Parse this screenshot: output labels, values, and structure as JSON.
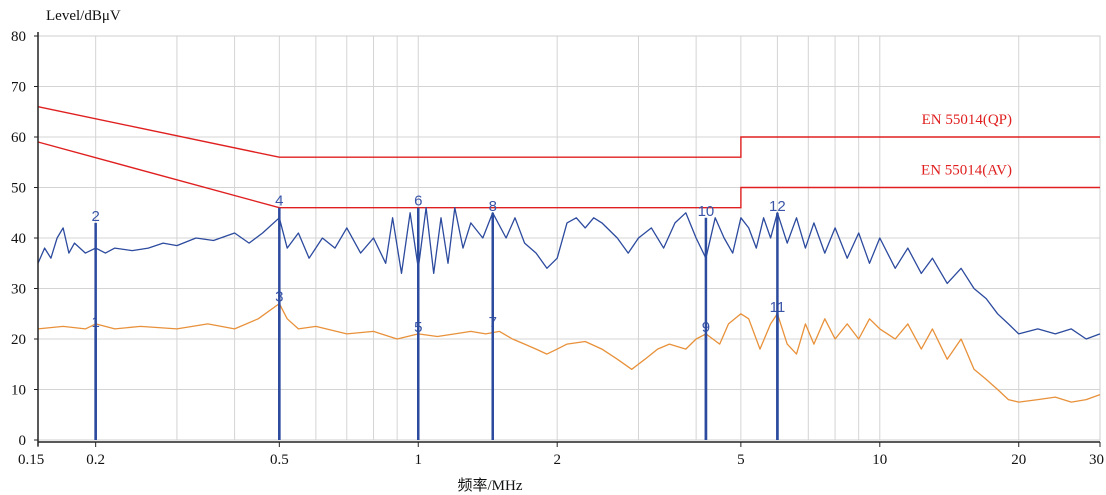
{
  "chart_data": {
    "type": "line",
    "title": "",
    "ylabel": "Level/dBμV",
    "xlabel": "频率/MHz",
    "xscale": "log",
    "xlim": [
      0.15,
      30
    ],
    "ylim": [
      0,
      80
    ],
    "grid": true,
    "x_ticks": [
      {
        "value": 0.15,
        "label": "0.15"
      },
      {
        "value": 0.2,
        "label": "0.2"
      },
      {
        "value": 0.5,
        "label": "0.5"
      },
      {
        "value": 1,
        "label": "1"
      },
      {
        "value": 2,
        "label": "2"
      },
      {
        "value": 5,
        "label": "5"
      },
      {
        "value": 10,
        "label": "10"
      },
      {
        "value": 20,
        "label": "20"
      },
      {
        "value": 30,
        "label": "30"
      }
    ],
    "y_ticks": [
      {
        "value": 0,
        "label": "0"
      },
      {
        "value": 10,
        "label": "10"
      },
      {
        "value": 20,
        "label": "20"
      },
      {
        "value": 30,
        "label": "30"
      },
      {
        "value": 40,
        "label": "40"
      },
      {
        "value": 50,
        "label": "50"
      },
      {
        "value": 60,
        "label": "60"
      },
      {
        "value": 70,
        "label": "70"
      },
      {
        "value": 80,
        "label": "80"
      }
    ],
    "colors": {
      "peak": "#2c4a9e",
      "average": "#e8913a",
      "limit": "#e02020",
      "marker": "#2c4a9e",
      "grid": "#d4d4d4"
    },
    "limit_lines": [
      {
        "name": "EN 55014(QP)",
        "points": [
          [
            0.15,
            66
          ],
          [
            0.5,
            56
          ],
          [
            5,
            56
          ],
          [
            5,
            60
          ],
          [
            30,
            60
          ]
        ]
      },
      {
        "name": "EN 55014(AV)",
        "points": [
          [
            0.15,
            59
          ],
          [
            0.5,
            46
          ],
          [
            5,
            46
          ],
          [
            5,
            50
          ],
          [
            30,
            50
          ]
        ]
      }
    ],
    "series": [
      {
        "points": [
          [
            0.15,
            35
          ],
          [
            0.155,
            38
          ],
          [
            0.16,
            36
          ],
          [
            0.165,
            40
          ],
          [
            0.17,
            42
          ],
          [
            0.175,
            37
          ],
          [
            0.18,
            39
          ],
          [
            0.19,
            37
          ],
          [
            0.2,
            38
          ],
          [
            0.21,
            37
          ],
          [
            0.22,
            38
          ],
          [
            0.24,
            37.5
          ],
          [
            0.26,
            38
          ],
          [
            0.28,
            39
          ],
          [
            0.3,
            38.5
          ],
          [
            0.33,
            40
          ],
          [
            0.36,
            39.5
          ],
          [
            0.4,
            41
          ],
          [
            0.43,
            39
          ],
          [
            0.46,
            41
          ],
          [
            0.5,
            44
          ],
          [
            0.52,
            38
          ],
          [
            0.55,
            41
          ],
          [
            0.58,
            36
          ],
          [
            0.62,
            40
          ],
          [
            0.66,
            38
          ],
          [
            0.7,
            42
          ],
          [
            0.75,
            37
          ],
          [
            0.8,
            40
          ],
          [
            0.85,
            35
          ],
          [
            0.88,
            44
          ],
          [
            0.92,
            33
          ],
          [
            0.96,
            45
          ],
          [
            1.0,
            34
          ],
          [
            1.04,
            46
          ],
          [
            1.08,
            33
          ],
          [
            1.12,
            44
          ],
          [
            1.16,
            35
          ],
          [
            1.2,
            46
          ],
          [
            1.25,
            38
          ],
          [
            1.3,
            43
          ],
          [
            1.38,
            40
          ],
          [
            1.45,
            45
          ],
          [
            1.55,
            40
          ],
          [
            1.62,
            44
          ],
          [
            1.7,
            39
          ],
          [
            1.8,
            37
          ],
          [
            1.9,
            34
          ],
          [
            2.0,
            36
          ],
          [
            2.1,
            43
          ],
          [
            2.2,
            44
          ],
          [
            2.3,
            42
          ],
          [
            2.4,
            44
          ],
          [
            2.5,
            43
          ],
          [
            2.7,
            40
          ],
          [
            2.85,
            37
          ],
          [
            3.0,
            40
          ],
          [
            3.2,
            42
          ],
          [
            3.4,
            38
          ],
          [
            3.6,
            43
          ],
          [
            3.8,
            45
          ],
          [
            4.0,
            40
          ],
          [
            4.2,
            36
          ],
          [
            4.4,
            44
          ],
          [
            4.6,
            40
          ],
          [
            4.8,
            37
          ],
          [
            5.0,
            44
          ],
          [
            5.2,
            42
          ],
          [
            5.4,
            38
          ],
          [
            5.6,
            44
          ],
          [
            5.8,
            40
          ],
          [
            6.0,
            45
          ],
          [
            6.3,
            39
          ],
          [
            6.6,
            44
          ],
          [
            6.9,
            38
          ],
          [
            7.2,
            43
          ],
          [
            7.6,
            37
          ],
          [
            8.0,
            42
          ],
          [
            8.5,
            36
          ],
          [
            9.0,
            41
          ],
          [
            9.5,
            35
          ],
          [
            10,
            40
          ],
          [
            10.8,
            34
          ],
          [
            11.5,
            38
          ],
          [
            12.3,
            33
          ],
          [
            13,
            36
          ],
          [
            14,
            31
          ],
          [
            15,
            34
          ],
          [
            16,
            30
          ],
          [
            17,
            28
          ],
          [
            18,
            25
          ],
          [
            19,
            23
          ],
          [
            20,
            21
          ],
          [
            22,
            22
          ],
          [
            24,
            21
          ],
          [
            26,
            22
          ],
          [
            28,
            20
          ],
          [
            30,
            21
          ]
        ]
      },
      {
        "points": [
          [
            0.15,
            22
          ],
          [
            0.17,
            22.5
          ],
          [
            0.19,
            22
          ],
          [
            0.2,
            23
          ],
          [
            0.22,
            22
          ],
          [
            0.25,
            22.5
          ],
          [
            0.3,
            22
          ],
          [
            0.35,
            23
          ],
          [
            0.4,
            22
          ],
          [
            0.45,
            24
          ],
          [
            0.5,
            27
          ],
          [
            0.52,
            24
          ],
          [
            0.55,
            22
          ],
          [
            0.6,
            22.5
          ],
          [
            0.7,
            21
          ],
          [
            0.8,
            21.5
          ],
          [
            0.9,
            20
          ],
          [
            1.0,
            21
          ],
          [
            1.1,
            20.5
          ],
          [
            1.2,
            21
          ],
          [
            1.3,
            21.5
          ],
          [
            1.4,
            21
          ],
          [
            1.5,
            21.5
          ],
          [
            1.6,
            20
          ],
          [
            1.7,
            19
          ],
          [
            1.8,
            18
          ],
          [
            1.9,
            17
          ],
          [
            2.0,
            18
          ],
          [
            2.1,
            19
          ],
          [
            2.3,
            19.5
          ],
          [
            2.5,
            18
          ],
          [
            2.7,
            16
          ],
          [
            2.9,
            14
          ],
          [
            3.1,
            16
          ],
          [
            3.3,
            18
          ],
          [
            3.5,
            19
          ],
          [
            3.8,
            18
          ],
          [
            4.0,
            20
          ],
          [
            4.2,
            21
          ],
          [
            4.5,
            19
          ],
          [
            4.7,
            23
          ],
          [
            5.0,
            25
          ],
          [
            5.2,
            24
          ],
          [
            5.5,
            18
          ],
          [
            5.8,
            23
          ],
          [
            6.0,
            25
          ],
          [
            6.3,
            19
          ],
          [
            6.6,
            17
          ],
          [
            6.9,
            23
          ],
          [
            7.2,
            19
          ],
          [
            7.6,
            24
          ],
          [
            8.0,
            20
          ],
          [
            8.5,
            23
          ],
          [
            9.0,
            20
          ],
          [
            9.5,
            24
          ],
          [
            10,
            22
          ],
          [
            10.8,
            20
          ],
          [
            11.5,
            23
          ],
          [
            12.3,
            18
          ],
          [
            13,
            22
          ],
          [
            14,
            16
          ],
          [
            15,
            20
          ],
          [
            16,
            14
          ],
          [
            17,
            12
          ],
          [
            18,
            10
          ],
          [
            19,
            8
          ],
          [
            20,
            7.5
          ],
          [
            22,
            8
          ],
          [
            24,
            8.5
          ],
          [
            26,
            7.5
          ],
          [
            28,
            8
          ],
          [
            30,
            9
          ]
        ]
      }
    ],
    "markers": [
      {
        "label": "1",
        "x": 0.2,
        "top": 22
      },
      {
        "label": "2",
        "x": 0.2,
        "top": 43
      },
      {
        "label": "3",
        "x": 0.5,
        "top": 27
      },
      {
        "label": "4",
        "x": 0.5,
        "top": 46
      },
      {
        "label": "5",
        "x": 1.0,
        "top": 21
      },
      {
        "label": "6",
        "x": 1.0,
        "top": 46
      },
      {
        "label": "7",
        "x": 1.45,
        "top": 22
      },
      {
        "label": "8",
        "x": 1.45,
        "top": 45
      },
      {
        "label": "9",
        "x": 4.2,
        "top": 21
      },
      {
        "label": "10",
        "x": 4.2,
        "top": 44
      },
      {
        "label": "11",
        "x": 6.0,
        "top": 25
      },
      {
        "label": "12",
        "x": 6.0,
        "top": 45
      }
    ]
  }
}
